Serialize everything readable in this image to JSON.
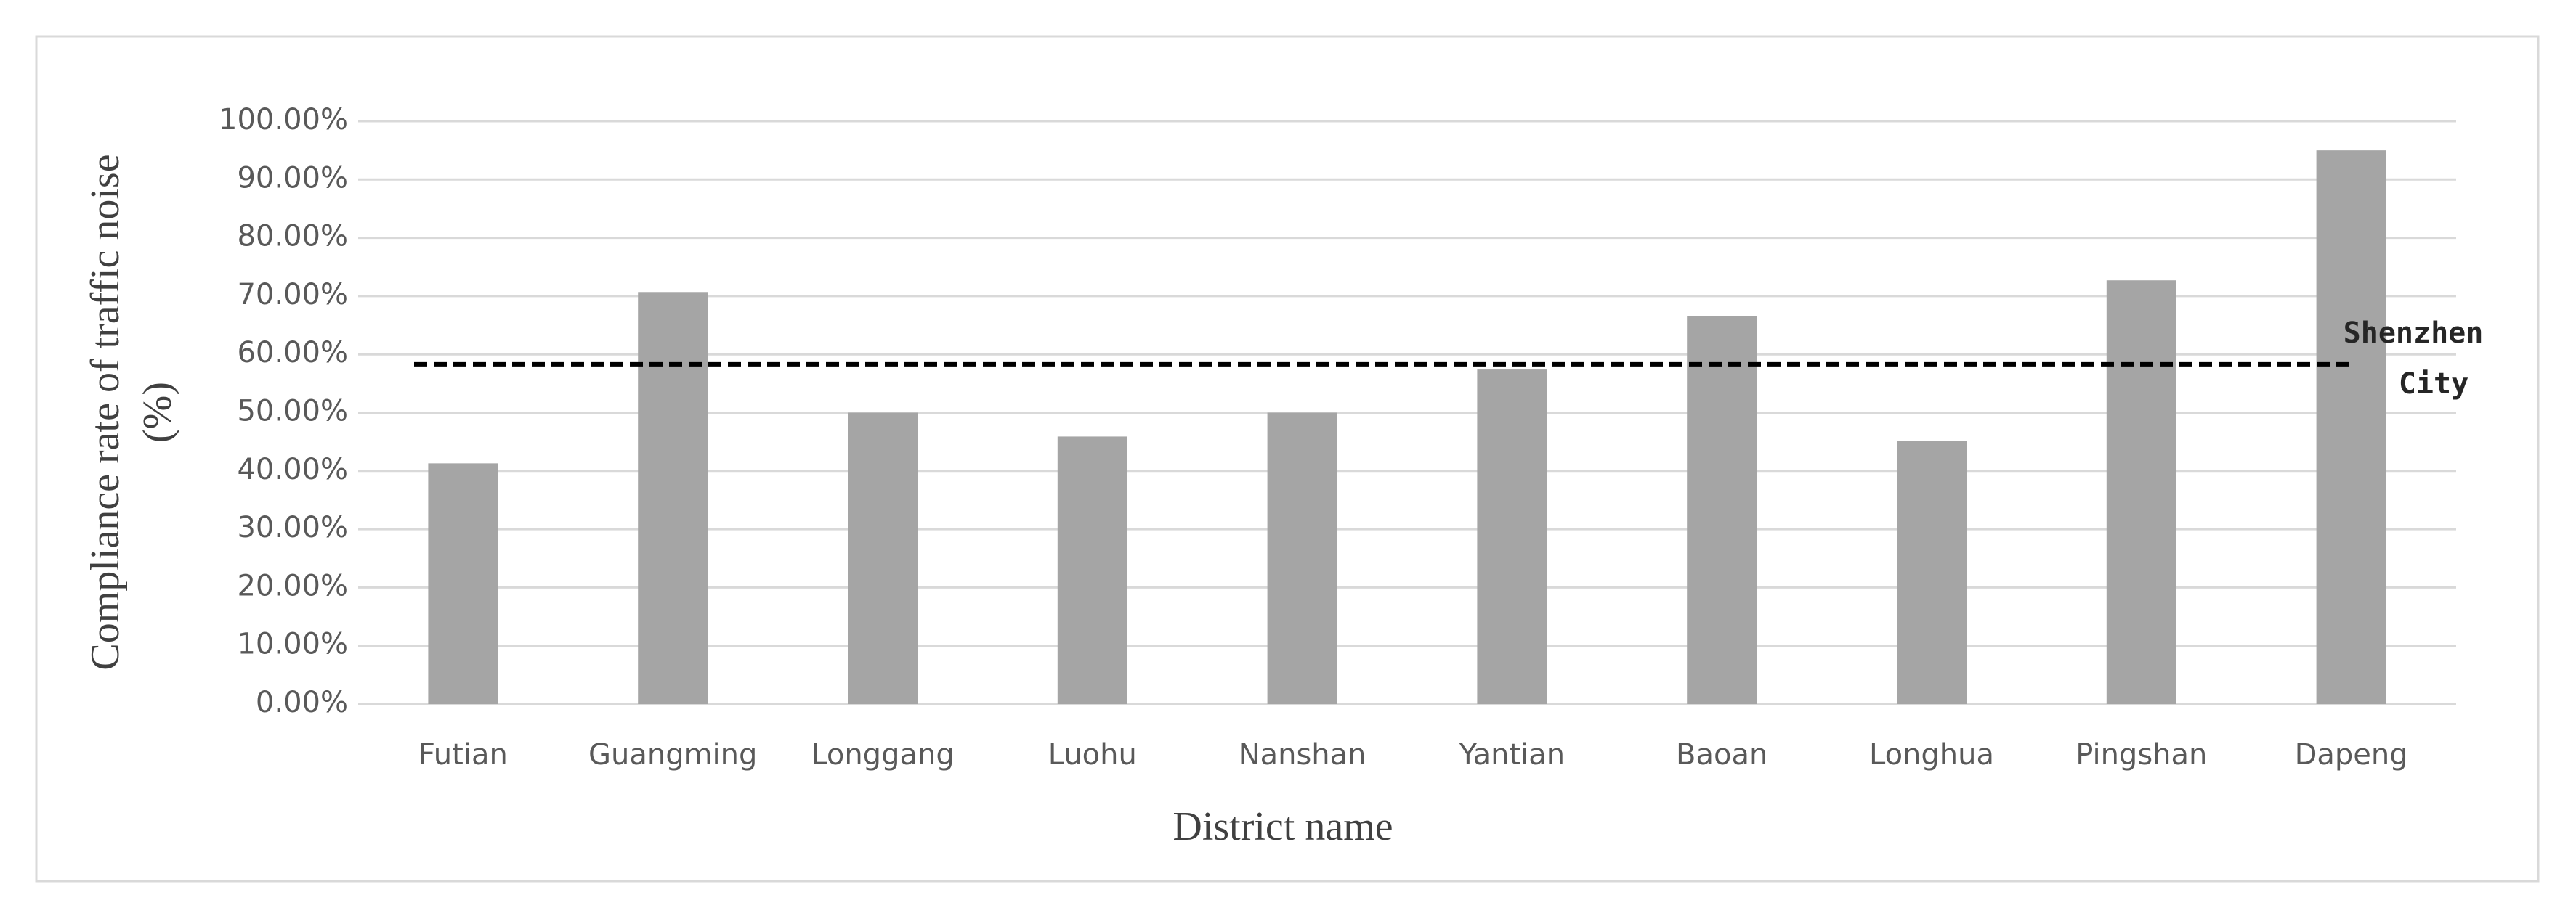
{
  "chart_data": {
    "type": "bar",
    "categories": [
      "Futian",
      "Guangming",
      "Longgang",
      "Luohu",
      "Nanshan",
      "Yantian",
      "Baoan",
      "Longhua",
      "Pingshan",
      "Dapeng"
    ],
    "values": [
      41.3,
      70.7,
      50.0,
      45.9,
      50.0,
      57.4,
      66.5,
      45.2,
      72.7,
      95.0
    ],
    "color": "#a5a5a5",
    "ylim": [
      0,
      100
    ],
    "yticks": [
      {
        "value": 0,
        "label": "0.00%"
      },
      {
        "value": 10,
        "label": "10.00%"
      },
      {
        "value": 20,
        "label": "20.00%"
      },
      {
        "value": 30,
        "label": "30.00%"
      },
      {
        "value": 40,
        "label": "40.00%"
      },
      {
        "value": 50,
        "label": "50.00%"
      },
      {
        "value": 60,
        "label": "60.00%"
      },
      {
        "value": 70,
        "label": "70.00%"
      },
      {
        "value": 80,
        "label": "80.00%"
      },
      {
        "value": 90,
        "label": "90.00%"
      },
      {
        "value": 100,
        "label": "100.00%"
      }
    ],
    "grid": true,
    "xlabel": "District name",
    "ylabel": [
      "Compliance rate of traffic noise",
      "(%)"
    ],
    "reference_line": {
      "value": 58.3,
      "label": [
        "Shenzhen",
        "City"
      ]
    }
  }
}
